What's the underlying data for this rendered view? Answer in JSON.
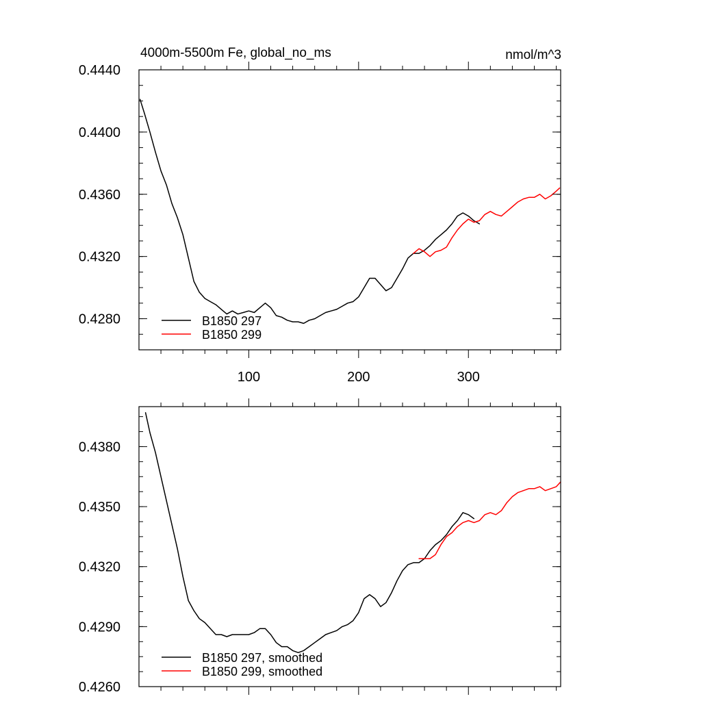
{
  "chart_data": [
    {
      "type": "line",
      "title": "4000m-5500m Fe, global_no_ms",
      "units": "nmol/m^3",
      "xlim": [
        0,
        384
      ],
      "ylim": [
        0.426,
        0.444
      ],
      "xticks": [
        100,
        200,
        300
      ],
      "xtick_labels": [
        "100",
        "200",
        "300"
      ],
      "yticks": [
        0.428,
        0.432,
        0.436,
        0.44,
        0.444
      ],
      "ytick_labels": [
        "0.4280",
        "0.4320",
        "0.4360",
        "0.4400",
        "0.4440"
      ],
      "legend_position": "bottom-left",
      "series": [
        {
          "name": "B1850 297",
          "color": "#000000",
          "x": [
            1,
            5,
            10,
            15,
            20,
            25,
            30,
            35,
            40,
            45,
            50,
            55,
            60,
            65,
            70,
            75,
            80,
            85,
            90,
            95,
            100,
            105,
            110,
            115,
            120,
            125,
            130,
            135,
            140,
            145,
            150,
            155,
            160,
            165,
            170,
            175,
            180,
            185,
            190,
            195,
            200,
            205,
            210,
            215,
            220,
            225,
            230,
            235,
            240,
            245,
            250,
            255,
            260,
            265,
            270,
            275,
            280,
            285,
            290,
            295,
            300,
            305,
            310
          ],
          "y": [
            0.4421,
            0.4412,
            0.44,
            0.4387,
            0.4375,
            0.4366,
            0.4354,
            0.4345,
            0.4334,
            0.4319,
            0.4304,
            0.4297,
            0.4293,
            0.4291,
            0.4289,
            0.4286,
            0.4283,
            0.4285,
            0.4283,
            0.4284,
            0.4285,
            0.4284,
            0.4287,
            0.429,
            0.4287,
            0.4282,
            0.4281,
            0.4279,
            0.4278,
            0.4278,
            0.4277,
            0.4279,
            0.428,
            0.4282,
            0.4284,
            0.4285,
            0.4286,
            0.4288,
            0.429,
            0.4291,
            0.4294,
            0.43,
            0.4306,
            0.4306,
            0.4302,
            0.4298,
            0.43,
            0.4306,
            0.4312,
            0.4319,
            0.4322,
            0.4322,
            0.4324,
            0.4327,
            0.4331,
            0.4334,
            0.4337,
            0.4341,
            0.4346,
            0.4348,
            0.4346,
            0.4343,
            0.4341
          ]
        },
        {
          "name": "B1850 299",
          "color": "#ff0000",
          "x": [
            250,
            255,
            260,
            265,
            270,
            275,
            280,
            285,
            290,
            295,
            300,
            305,
            310,
            315,
            320,
            325,
            330,
            335,
            340,
            345,
            350,
            355,
            360,
            365,
            370,
            375,
            380,
            383
          ],
          "y": [
            0.4322,
            0.4325,
            0.4323,
            0.432,
            0.4323,
            0.4324,
            0.4326,
            0.4332,
            0.4337,
            0.4341,
            0.4344,
            0.4342,
            0.4343,
            0.4347,
            0.4349,
            0.4347,
            0.4346,
            0.4349,
            0.4352,
            0.4355,
            0.4357,
            0.4358,
            0.4358,
            0.436,
            0.4357,
            0.4359,
            0.4362,
            0.4364
          ]
        }
      ]
    },
    {
      "type": "line",
      "title": "",
      "units": "",
      "xlim": [
        0,
        384
      ],
      "ylim": [
        0.426,
        0.44
      ],
      "xticks": [
        100,
        200,
        300
      ],
      "xtick_labels": [
        "",
        "",
        ""
      ],
      "yticks": [
        0.426,
        0.429,
        0.432,
        0.435,
        0.438
      ],
      "ytick_labels": [
        "0.4260",
        "0.4290",
        "0.4320",
        "0.4350",
        "0.4380"
      ],
      "legend_position": "bottom-left",
      "series": [
        {
          "name": "B1850 297, smoothed",
          "color": "#000000",
          "x": [
            6,
            10,
            15,
            20,
            25,
            30,
            35,
            40,
            45,
            50,
            55,
            60,
            65,
            70,
            75,
            80,
            85,
            90,
            95,
            100,
            105,
            110,
            115,
            120,
            125,
            130,
            135,
            140,
            145,
            150,
            155,
            160,
            165,
            170,
            175,
            180,
            185,
            190,
            195,
            200,
            205,
            210,
            215,
            220,
            225,
            230,
            235,
            240,
            245,
            250,
            255,
            260,
            265,
            270,
            275,
            280,
            285,
            290,
            295,
            300,
            305
          ],
          "y": [
            0.4397,
            0.4387,
            0.4377,
            0.4365,
            0.4353,
            0.4341,
            0.4329,
            0.4315,
            0.4303,
            0.4298,
            0.4294,
            0.4292,
            0.4289,
            0.4286,
            0.4286,
            0.4285,
            0.4286,
            0.4286,
            0.4286,
            0.4286,
            0.4287,
            0.4289,
            0.4289,
            0.4286,
            0.4282,
            0.428,
            0.428,
            0.4278,
            0.4277,
            0.4278,
            0.428,
            0.4282,
            0.4284,
            0.4286,
            0.4287,
            0.4288,
            0.429,
            0.4291,
            0.4293,
            0.4297,
            0.4304,
            0.4306,
            0.4304,
            0.43,
            0.4302,
            0.4307,
            0.4313,
            0.4318,
            0.4321,
            0.4322,
            0.4322,
            0.4324,
            0.4328,
            0.4331,
            0.4333,
            0.4336,
            0.434,
            0.4343,
            0.4347,
            0.4346,
            0.4344
          ]
        },
        {
          "name": "B1850 299, smoothed",
          "color": "#ff0000",
          "x": [
            255,
            260,
            265,
            270,
            275,
            280,
            285,
            290,
            295,
            300,
            305,
            310,
            315,
            320,
            325,
            330,
            335,
            340,
            345,
            350,
            355,
            360,
            365,
            370,
            375,
            380,
            385
          ],
          "y": [
            0.4324,
            0.4324,
            0.4324,
            0.4326,
            0.4331,
            0.4335,
            0.4337,
            0.434,
            0.4342,
            0.4343,
            0.4342,
            0.4343,
            0.4346,
            0.4347,
            0.4346,
            0.4348,
            0.4352,
            0.4355,
            0.4357,
            0.4358,
            0.4359,
            0.4359,
            0.436,
            0.4358,
            0.4359,
            0.436,
            0.4363
          ]
        }
      ]
    }
  ]
}
